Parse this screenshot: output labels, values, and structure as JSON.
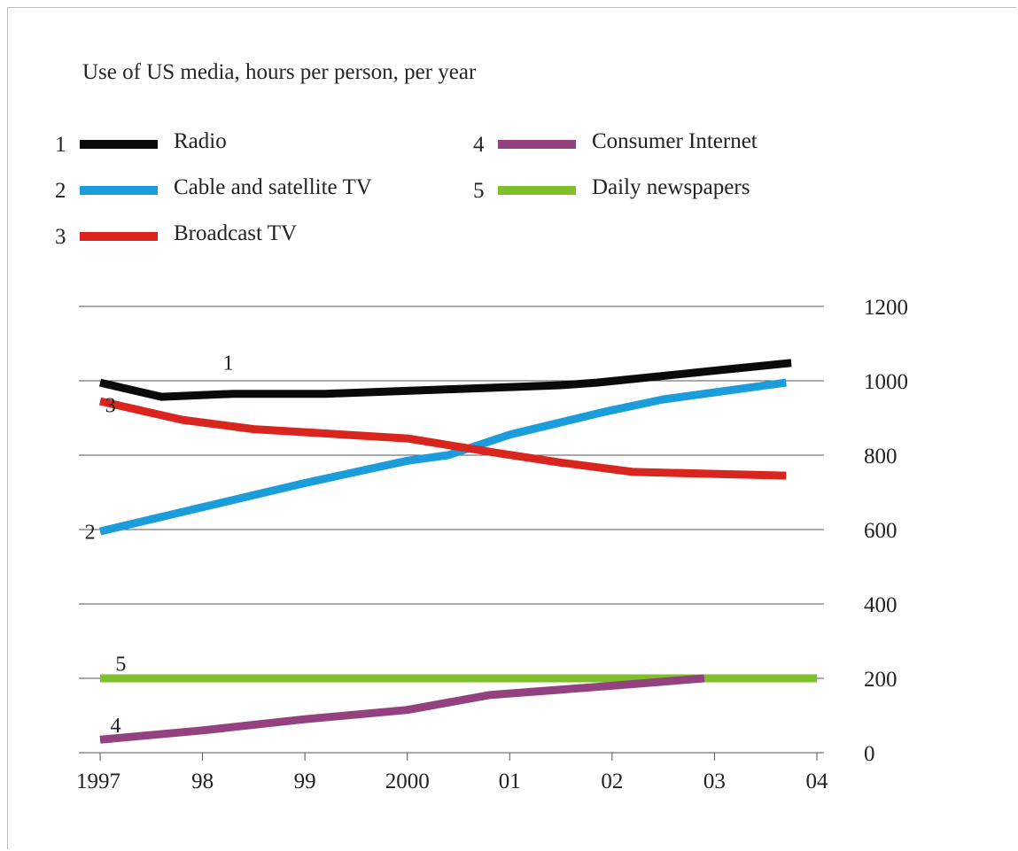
{
  "chart_data": {
    "type": "line",
    "title": "Use of US media, hours per person, per year",
    "x_tick_labels": [
      "1997",
      "98",
      "99",
      "2000",
      "01",
      "02",
      "03",
      "04"
    ],
    "y_ticks": [
      0,
      200,
      400,
      600,
      800,
      1000,
      1200
    ],
    "ylim": [
      0,
      1200
    ],
    "xlim": [
      1997,
      2004
    ],
    "grid": "horizontal",
    "legend_position": "top",
    "series": [
      {
        "id": "1",
        "name": "Radio",
        "color": "#0a0a0a",
        "x": [
          1997,
          1997.6,
          1998.3,
          1999.2,
          2000.2,
          2001.5,
          2001.85,
          2003.1,
          2003.75
        ],
        "y": [
          995,
          957,
          965,
          965,
          975,
          988,
          995,
          1030,
          1048
        ]
      },
      {
        "id": "2",
        "name": "Cable and satellite TV",
        "color": "#1b9ddb",
        "x": [
          1997,
          1998,
          1999,
          2000,
          2000.4,
          2001,
          2001.9,
          2002.5,
          2003.7
        ],
        "y": [
          595,
          660,
          725,
          785,
          800,
          855,
          915,
          950,
          995
        ]
      },
      {
        "id": "3",
        "name": "Broadcast TV",
        "color": "#d9251d",
        "x": [
          1997,
          1997.8,
          1998.5,
          2000,
          2000.9,
          2001.5,
          2002.2,
          2003.7
        ],
        "y": [
          945,
          895,
          870,
          845,
          805,
          780,
          755,
          745
        ]
      },
      {
        "id": "4",
        "name": "Consumer Internet",
        "color": "#94427f",
        "x": [
          1997,
          1998,
          1999,
          2000,
          2000.8,
          2002,
          2002.9
        ],
        "y": [
          35,
          60,
          90,
          115,
          155,
          180,
          200
        ]
      },
      {
        "id": "5",
        "name": "Daily newspapers",
        "color": "#7fbf2a",
        "x": [
          1997,
          2004
        ],
        "y": [
          200,
          200
        ]
      }
    ],
    "line_labels": [
      {
        "text": "1",
        "x": 1998.2,
        "y": 1030
      },
      {
        "text": "2",
        "x": 1996.85,
        "y": 575
      },
      {
        "text": "3",
        "x": 1997.05,
        "y": 915
      },
      {
        "text": "4",
        "x": 1997.1,
        "y": 55
      },
      {
        "text": "5",
        "x": 1997.15,
        "y": 220
      }
    ]
  }
}
